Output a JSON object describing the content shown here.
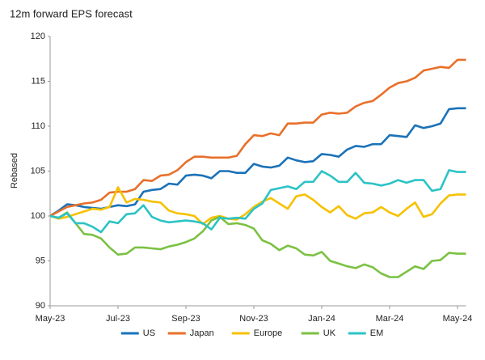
{
  "chart_data": {
    "type": "line",
    "title": "12m forward EPS forecast",
    "y_label": "Rebased",
    "categories": [
      "May-23",
      null,
      null,
      null,
      null,
      null,
      null,
      null,
      "Jul-23",
      null,
      null,
      null,
      null,
      null,
      null,
      null,
      "Sep-23",
      null,
      null,
      null,
      null,
      null,
      null,
      null,
      "Nov-23",
      null,
      null,
      null,
      null,
      null,
      null,
      null,
      "Jan-24",
      null,
      null,
      null,
      null,
      null,
      null,
      null,
      "Mar-24",
      null,
      null,
      null,
      null,
      null,
      null,
      null,
      "May-24",
      null
    ],
    "ylim": [
      90,
      120
    ],
    "yticks": [
      90,
      95,
      100,
      105,
      110,
      115,
      120
    ],
    "grid": false,
    "legend": "bottom",
    "series": [
      {
        "name": "US",
        "color": "#1b72b8",
        "values": [
          100,
          100.6,
          101.3,
          101.2,
          101.0,
          100.9,
          100.8,
          101.0,
          101.2,
          101.1,
          101.3,
          102.7,
          102.9,
          103.0,
          103.6,
          103.5,
          104.5,
          104.6,
          104.5,
          104.2,
          105.0,
          105.0,
          104.8,
          104.8,
          105.8,
          105.5,
          105.4,
          105.6,
          106.5,
          106.2,
          106.0,
          106.1,
          106.9,
          106.8,
          106.6,
          107.4,
          107.8,
          107.7,
          108.0,
          108.0,
          109.0,
          108.9,
          108.8,
          110.1,
          109.8,
          110.0,
          110.3,
          111.9,
          112.0,
          112.0
        ]
      },
      {
        "name": "Japan",
        "color": "#e8702a",
        "values": [
          100,
          100.5,
          101,
          101.2,
          101.4,
          101.5,
          101.8,
          102.6,
          102.7,
          102.7,
          103.0,
          104.0,
          103.9,
          104.5,
          104.6,
          105.1,
          106.0,
          106.6,
          106.6,
          106.5,
          106.5,
          106.5,
          106.7,
          108.0,
          109.0,
          108.9,
          109.2,
          109.0,
          110.3,
          110.3,
          110.4,
          110.4,
          111.3,
          111.5,
          111.4,
          111.5,
          112.2,
          112.6,
          112.8,
          113.5,
          114.3,
          114.8,
          115.0,
          115.4,
          116.2,
          116.4,
          116.6,
          116.5,
          117.4,
          117.4
        ]
      },
      {
        "name": "Europe",
        "color": "#f6c100",
        "values": [
          100,
          99.7,
          99.9,
          100.2,
          100.5,
          100.8,
          100.7,
          101.0,
          103.2,
          101.5,
          101.9,
          101.8,
          101.6,
          101.5,
          100.6,
          100.3,
          100.2,
          100.0,
          99.1,
          99.8,
          100.0,
          99.7,
          99.6,
          100.2,
          101.0,
          101.6,
          102.0,
          101.4,
          100.8,
          102.2,
          102.4,
          101.8,
          101.0,
          100.4,
          101.1,
          100.1,
          99.7,
          100.3,
          100.4,
          101.0,
          100.4,
          100.0,
          100.8,
          101.5,
          99.9,
          100.2,
          101.4,
          102.3,
          102.4,
          102.4
        ]
      },
      {
        "name": "UK",
        "color": "#7bc143",
        "values": [
          100,
          99.8,
          100.4,
          99.2,
          98.0,
          97.9,
          97.5,
          96.5,
          95.7,
          95.8,
          96.5,
          96.5,
          96.4,
          96.3,
          96.6,
          96.8,
          97.1,
          97.5,
          98.3,
          99.5,
          99.9,
          99.1,
          99.2,
          99.0,
          98.6,
          97.3,
          96.9,
          96.2,
          96.7,
          96.4,
          95.7,
          95.6,
          96.0,
          95.0,
          94.7,
          94.4,
          94.2,
          94.6,
          94.3,
          93.6,
          93.2,
          93.2,
          93.8,
          94.4,
          94.1,
          95.0,
          95.1,
          95.9,
          95.8,
          95.8
        ]
      },
      {
        "name": "EM",
        "color": "#2cc3c6",
        "values": [
          100,
          99.8,
          100.3,
          99.2,
          99.2,
          98.8,
          98.2,
          99.4,
          99.2,
          100.2,
          100.3,
          101.2,
          99.9,
          99.5,
          99.3,
          99.4,
          99.5,
          99.4,
          99.2,
          98.5,
          99.8,
          99.7,
          99.8,
          99.7,
          100.8,
          101.4,
          102.9,
          103.1,
          103.3,
          103.0,
          103.8,
          103.8,
          105.0,
          104.5,
          103.8,
          103.8,
          104.8,
          103.7,
          103.6,
          103.4,
          103.6,
          104.0,
          103.7,
          104.0,
          104.0,
          102.8,
          103.0,
          105.1,
          104.9,
          104.9
        ]
      }
    ]
  }
}
